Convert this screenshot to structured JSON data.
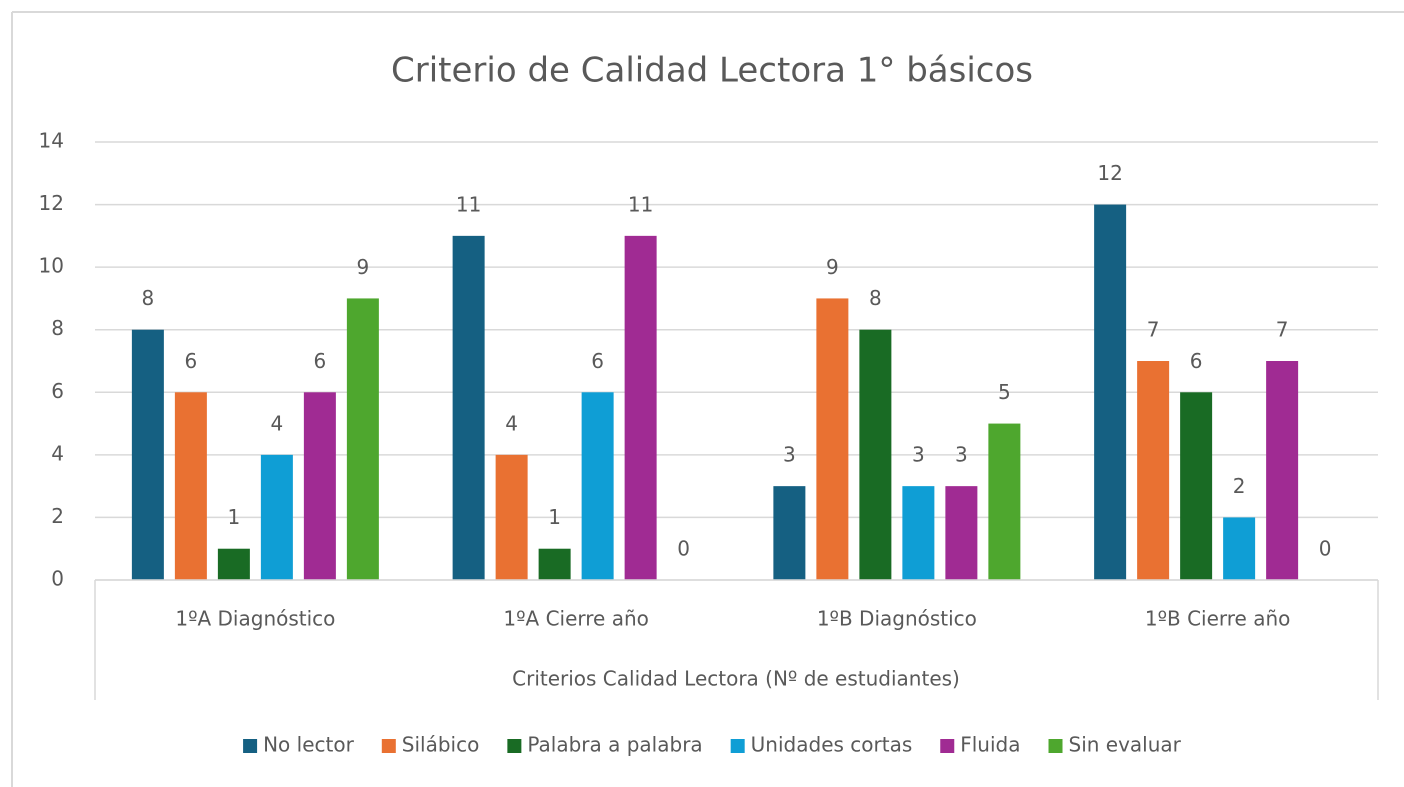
{
  "chart_data": {
    "type": "bar",
    "title": "Criterio de Calidad Lectora 1° básicos",
    "x_label": "Criterios Calidad Lectora (Nº de estudiantes)",
    "categories": [
      "1ºA Diagnóstico",
      "1ºA Cierre año",
      "1ºB Diagnóstico",
      "1ºB Cierre año"
    ],
    "series": [
      {
        "name": "No lector",
        "color": "#156082",
        "values": [
          8,
          11,
          3,
          12
        ]
      },
      {
        "name": "Silábico",
        "color": "#e97132",
        "values": [
          6,
          4,
          9,
          7
        ]
      },
      {
        "name": "Palabra a palabra",
        "color": "#196b24",
        "values": [
          1,
          1,
          8,
          6
        ]
      },
      {
        "name": "Unidades cortas",
        "color": "#0f9ed5",
        "values": [
          4,
          6,
          3,
          2
        ]
      },
      {
        "name": "Fluida",
        "color": "#a02b93",
        "values": [
          6,
          11,
          3,
          7
        ]
      },
      {
        "name": "Sin evaluar",
        "color": "#4ea72e",
        "values": [
          9,
          0,
          5,
          0
        ]
      }
    ],
    "ylim": [
      0,
      14
    ],
    "yticks": [
      0,
      2,
      4,
      6,
      8,
      10,
      12,
      14
    ],
    "grid": true,
    "legend": "bottom"
  }
}
